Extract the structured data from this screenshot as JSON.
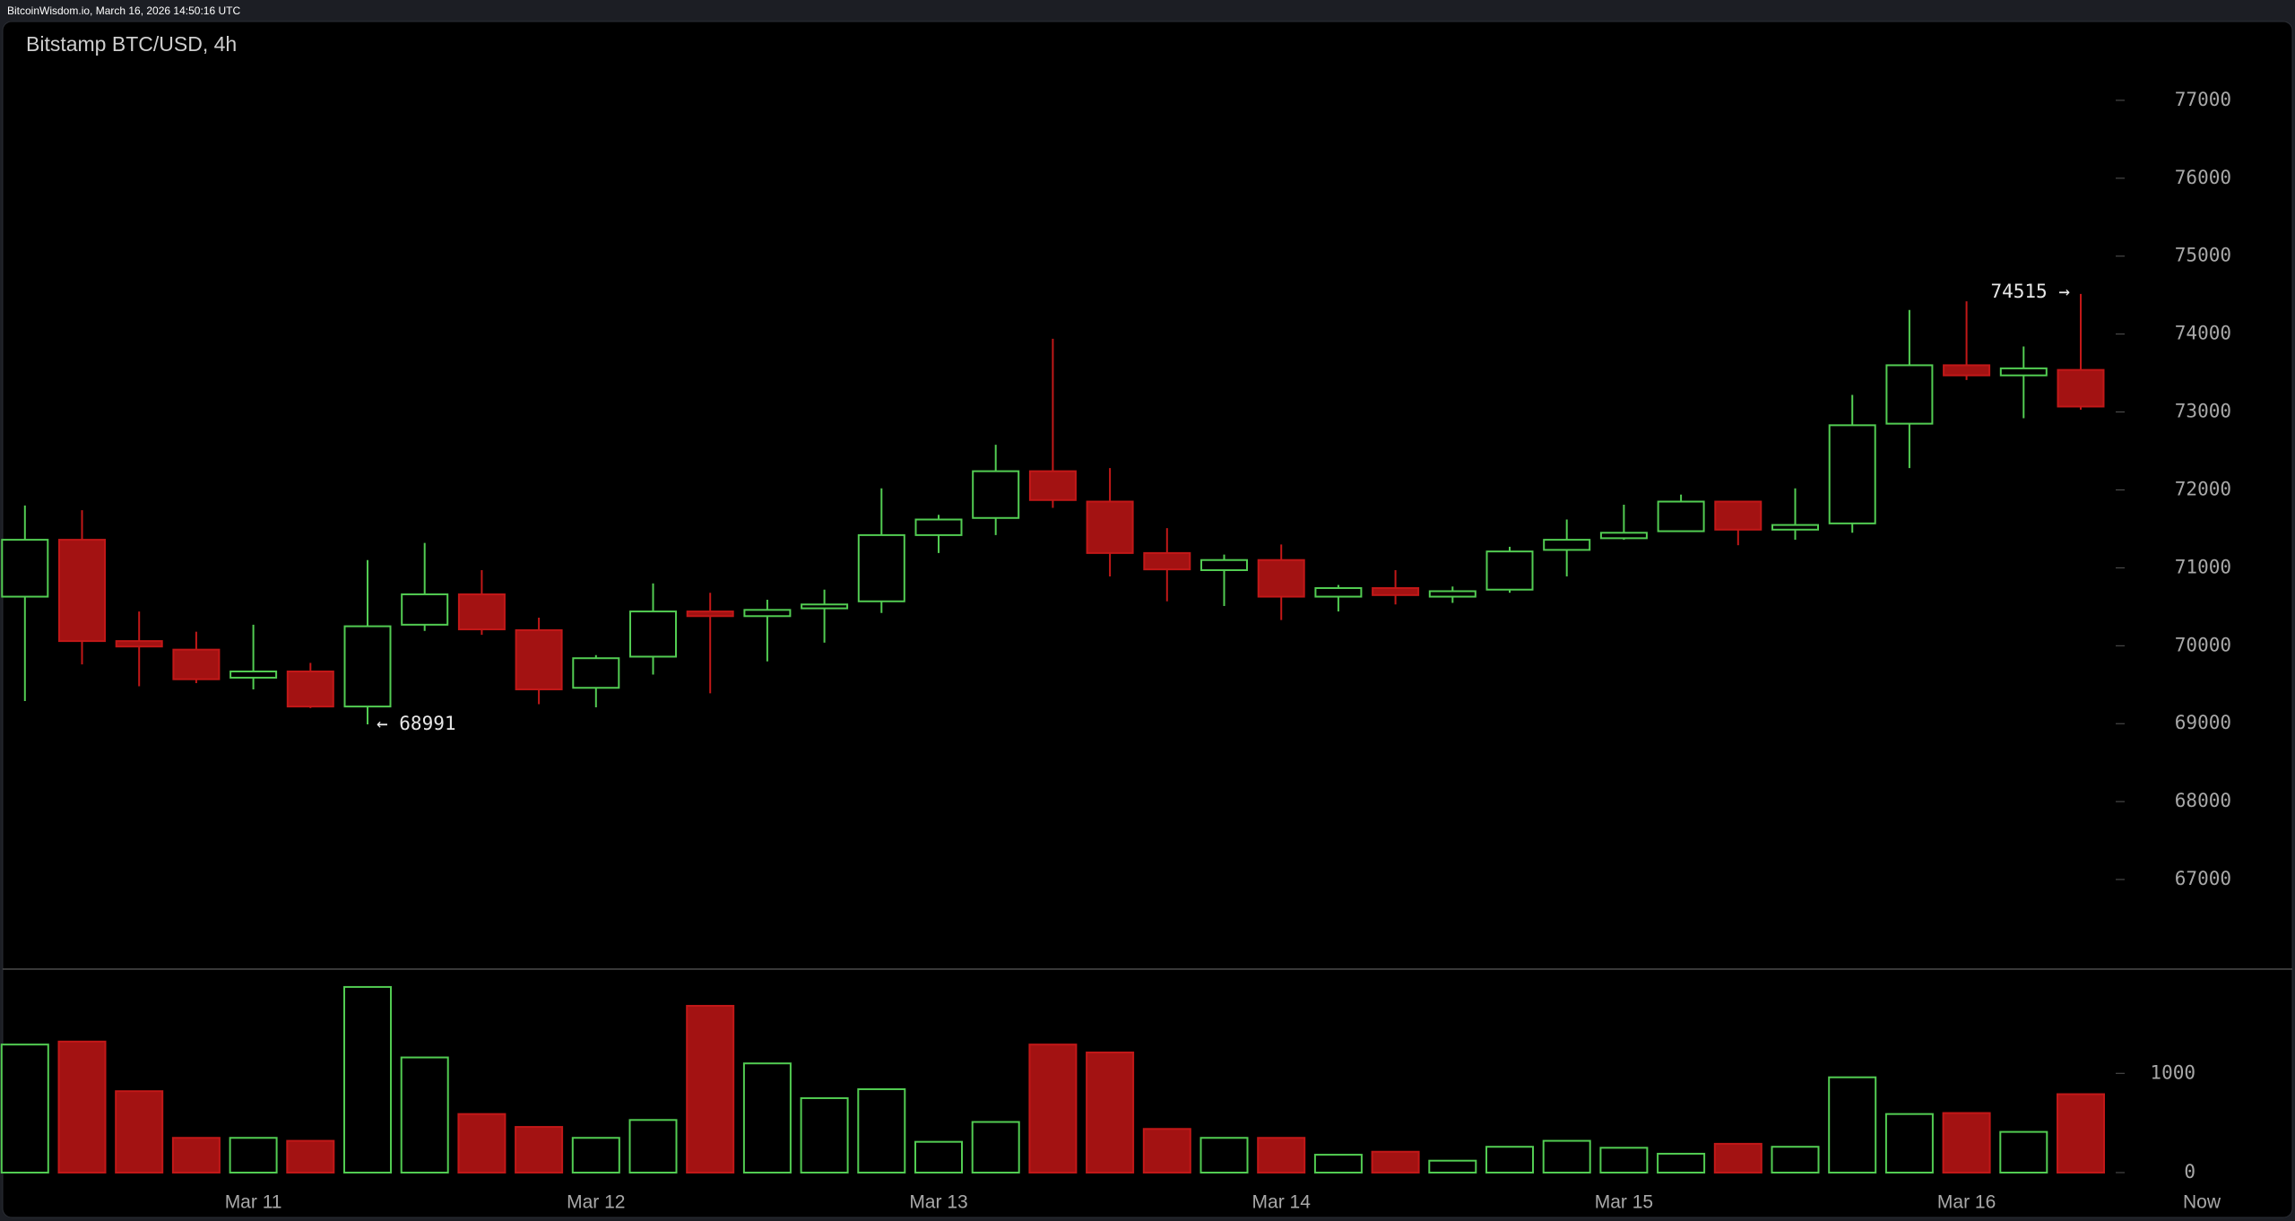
{
  "header": {
    "text": "BitcoinWisdom.io, March 16, 2026 14:50:16 UTC"
  },
  "chart_data": {
    "type": "candlestick",
    "title": "Bitstamp BTC/USD, 4h",
    "categories": [
      null,
      null,
      null,
      null,
      "Mar 11",
      null,
      null,
      null,
      null,
      null,
      "Mar 12",
      null,
      null,
      null,
      null,
      null,
      "Mar 13",
      null,
      null,
      null,
      null,
      null,
      "Mar 14",
      null,
      null,
      null,
      null,
      null,
      "Mar 15",
      null,
      null,
      null,
      null,
      null,
      "Mar 16",
      null,
      null
    ],
    "x_end_label": "Now",
    "open": [
      70630,
      71360,
      70060,
      69950,
      69590,
      69670,
      69220,
      70270,
      70660,
      70200,
      69460,
      69860,
      70440,
      70380,
      70480,
      70570,
      71420,
      71640,
      72240,
      71850,
      71190,
      70970,
      71100,
      70630,
      70740,
      70630,
      70720,
      71230,
      71380,
      71470,
      71850,
      71490,
      71570,
      72850,
      73600,
      73470,
      73540
    ],
    "high": [
      71800,
      71740,
      70440,
      70180,
      70270,
      69780,
      71100,
      71320,
      70970,
      70360,
      69880,
      70800,
      70680,
      70590,
      70720,
      72020,
      71680,
      72580,
      73940,
      72280,
      71510,
      71170,
      71300,
      70780,
      70970,
      70760,
      71270,
      71620,
      71810,
      71940,
      71850,
      72020,
      73220,
      74310,
      74420,
      73840,
      74515
    ],
    "low": [
      69290,
      69760,
      69480,
      69520,
      69440,
      69200,
      68991,
      70190,
      70140,
      69250,
      69210,
      69630,
      69390,
      69800,
      70040,
      70420,
      71190,
      71420,
      71770,
      70890,
      70570,
      70510,
      70330,
      70440,
      70530,
      70550,
      70680,
      70890,
      71360,
      71470,
      71290,
      71360,
      71450,
      72280,
      73410,
      72920,
      73030
    ],
    "close": [
      71360,
      70060,
      69990,
      69570,
      69670,
      69220,
      70250,
      70660,
      70210,
      69440,
      69840,
      70440,
      70380,
      70460,
      70530,
      71420,
      71620,
      72240,
      71870,
      71190,
      70980,
      71100,
      70630,
      70740,
      70650,
      70700,
      71210,
      71360,
      71450,
      71850,
      71490,
      71550,
      72830,
      73600,
      73470,
      73560,
      73070
    ],
    "volume": [
      1290,
      1320,
      820,
      350,
      350,
      320,
      1870,
      1160,
      590,
      460,
      350,
      530,
      1680,
      1100,
      750,
      840,
      310,
      510,
      1290,
      1210,
      440,
      350,
      350,
      180,
      210,
      120,
      260,
      320,
      250,
      190,
      290,
      260,
      960,
      590,
      600,
      410,
      790
    ],
    "high_label": "74515 →",
    "low_label": "← 68991",
    "up_color": "#52cc52",
    "down_color": "#a31212",
    "ylim": [
      65850,
      78000
    ],
    "yticks": [
      67000,
      68000,
      69000,
      70000,
      71000,
      72000,
      73000,
      74000,
      75000,
      76000,
      77000
    ],
    "volume_ylim": [
      0,
      2050
    ],
    "volume_yticks": [
      0,
      1000
    ]
  }
}
